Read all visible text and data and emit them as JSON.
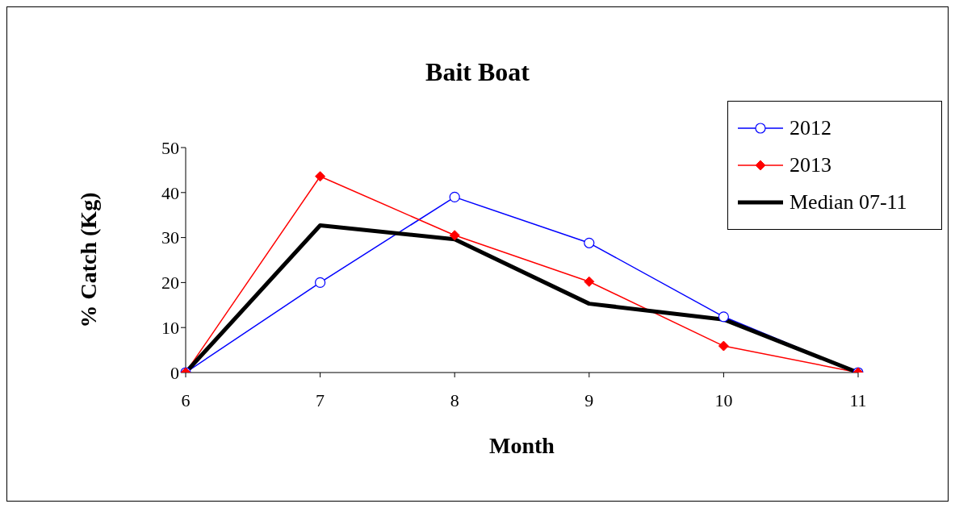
{
  "chart_data": {
    "type": "line",
    "title": "Bait Boat",
    "xlabel": "Month",
    "ylabel": "% Catch (Kg)",
    "categories": [
      "6",
      "7",
      "8",
      "9",
      "10",
      "11"
    ],
    "ylim": [
      0,
      50
    ],
    "yticks": [
      0,
      10,
      20,
      30,
      40,
      50
    ],
    "grid": false,
    "legend": "top right",
    "series": [
      {
        "name": "2012",
        "color": "#0000ff",
        "marker": "circle",
        "values": [
          0,
          20,
          39,
          28.8,
          12.4,
          0
        ]
      },
      {
        "name": "2013",
        "color": "#ff0000",
        "marker": "diamond",
        "values": [
          0,
          43.6,
          30.5,
          20.2,
          5.9,
          0
        ]
      },
      {
        "name": "Median 07-11",
        "color": "#000000",
        "marker": "none",
        "values": [
          0,
          32.7,
          29.6,
          15.3,
          11.8,
          0
        ]
      }
    ]
  }
}
